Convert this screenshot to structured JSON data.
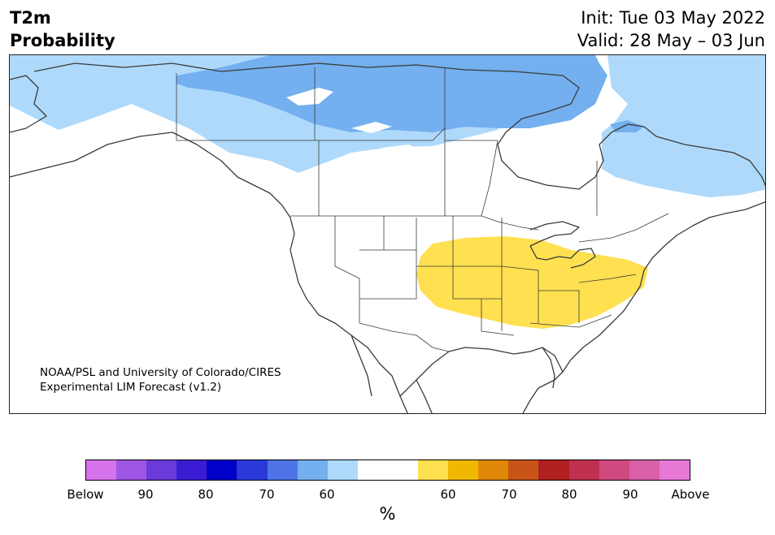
{
  "title": {
    "line1": "T2m",
    "line2": "Probability"
  },
  "forecast": {
    "init": "Init: Tue 03 May 2022",
    "valid": "Valid: 28 May – 03 Jun"
  },
  "credit": {
    "line1": "NOAA/PSL and University of Colorado/CIRES",
    "line2": "Experimental LIM Forecast (v1.2)"
  },
  "legend": {
    "unit": "%",
    "colors": [
      "#d673ea",
      "#9e56e4",
      "#6b3ad9",
      "#3a1dd2",
      "#0000c8",
      "#2a3ad8",
      "#4f74e6",
      "#74afef",
      "#aed9fb",
      "#ffffff",
      "#ffffff",
      "#ffe050",
      "#f0b800",
      "#e08808",
      "#c85418",
      "#b02020",
      "#c03050",
      "#d04a80",
      "#da60a8",
      "#e878d6"
    ],
    "tick_labels": [
      "Below",
      "90",
      "80",
      "70",
      "60",
      "60",
      "70",
      "80",
      "90",
      "Above"
    ]
  },
  "map": {
    "region": "North America",
    "fill_colors": {
      "below_50_60": "#aed9fb",
      "below_60_70": "#74afef",
      "above_50_60": "#ffe050",
      "land_line": "#3a3a3a"
    }
  }
}
